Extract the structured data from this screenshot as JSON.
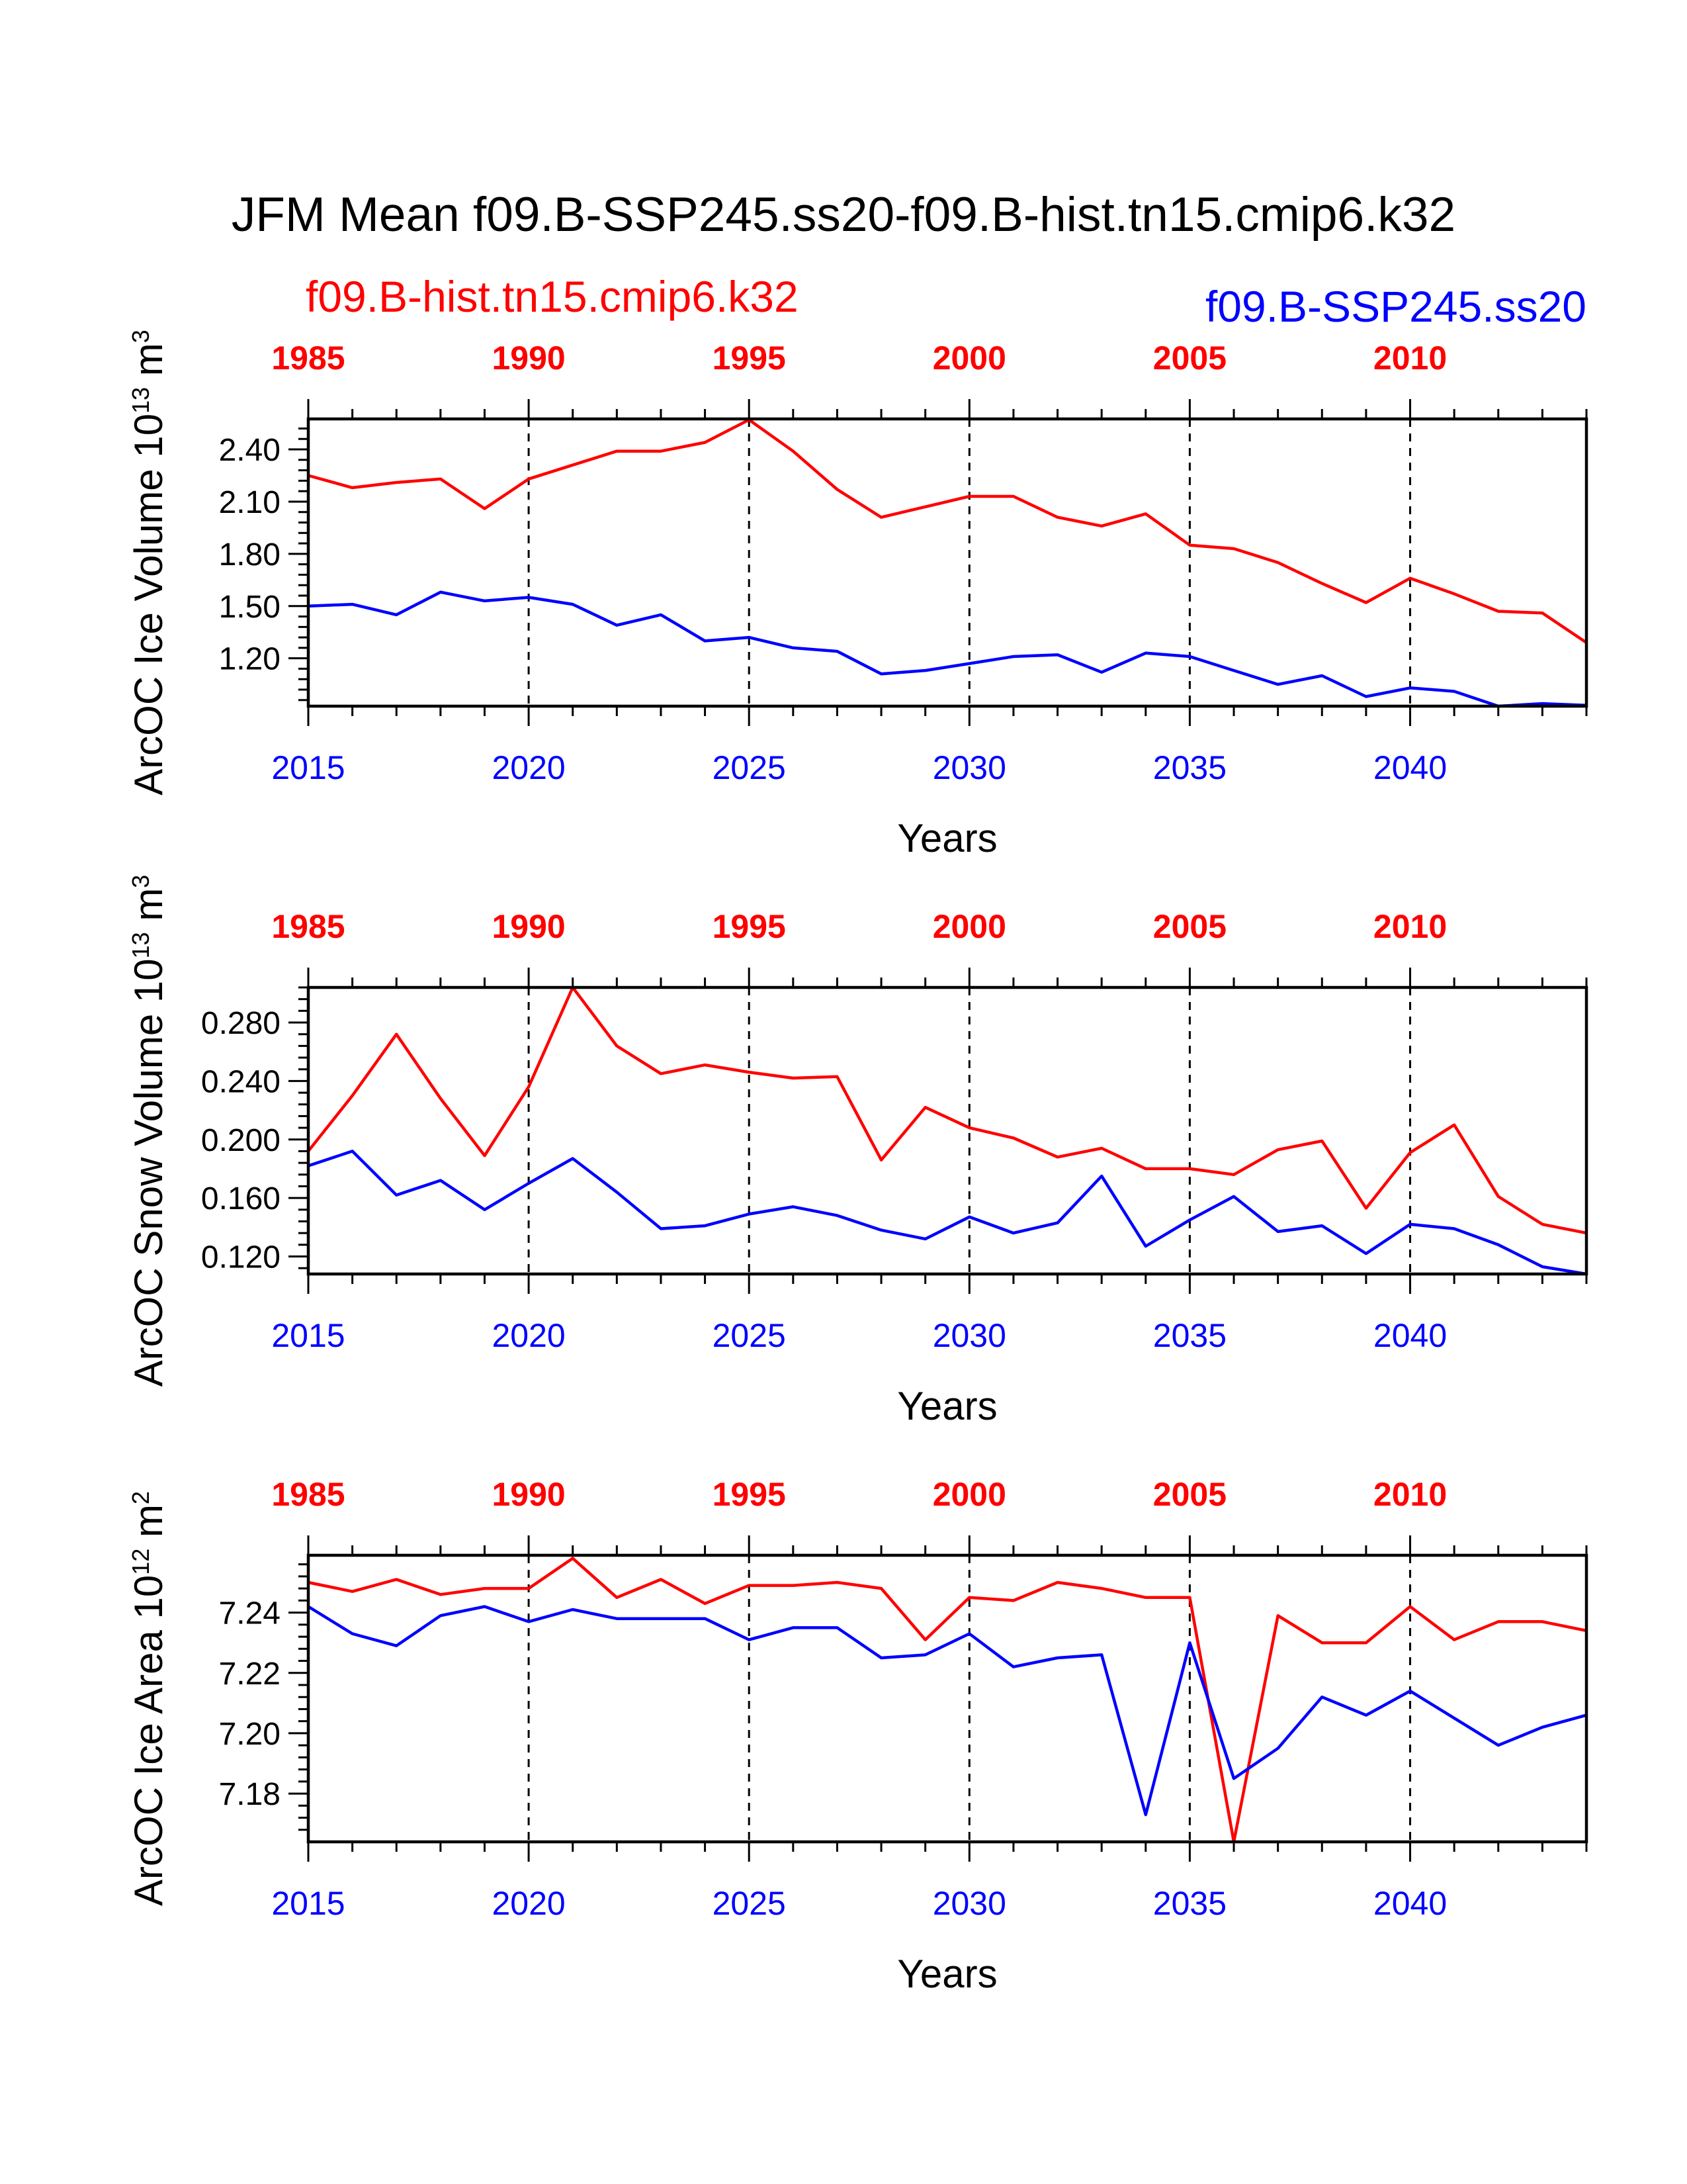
{
  "title": "JFM Mean f09.B-SSP245.ss20-f09.B-hist.tn15.cmip6.k32",
  "legend": {
    "hist_label": "f09.B-hist.tn15.cmip6.k32",
    "ssp_label": "f09.B-SSP245.ss20"
  },
  "colors": {
    "hist": "#ff0000",
    "ssp": "#0000ff",
    "axis": "#000000"
  },
  "chart_data": [
    {
      "type": "line",
      "ylabel": "ArcOC Ice Volume",
      "yunit_base": "10",
      "yunit_exp": "13",
      "yunit_tail": "m",
      "yunit_tail_exp": "3",
      "xlabel": "Years",
      "xlim": [
        2015,
        2044
      ],
      "ylim": [
        0.925,
        2.575
      ],
      "yticks": [
        "1.20",
        "1.50",
        "1.80",
        "2.10",
        "2.40"
      ],
      "x_bottom_ticks": [
        "2015",
        "2020",
        "2025",
        "2030",
        "2035",
        "2040"
      ],
      "x_top_ticks": [
        "1985",
        "1990",
        "1995",
        "2000",
        "2005",
        "2010"
      ],
      "x": [
        2015,
        2016,
        2017,
        2018,
        2019,
        2020,
        2021,
        2022,
        2023,
        2024,
        2025,
        2026,
        2027,
        2028,
        2029,
        2030,
        2031,
        2032,
        2033,
        2034,
        2035,
        2036,
        2037,
        2038,
        2039,
        2040,
        2041,
        2042,
        2043,
        2044
      ],
      "series": [
        {
          "key": "hist",
          "values": [
            2.25,
            2.18,
            2.21,
            2.23,
            2.06,
            2.23,
            2.31,
            2.39,
            2.39,
            2.44,
            2.57,
            2.39,
            2.17,
            2.01,
            2.07,
            2.13,
            2.13,
            2.01,
            1.96,
            2.03,
            1.85,
            1.83,
            1.75,
            1.63,
            1.52,
            1.66,
            1.57,
            1.47,
            1.46,
            1.29
          ]
        },
        {
          "key": "ssp",
          "values": [
            1.5,
            1.51,
            1.45,
            1.58,
            1.53,
            1.55,
            1.51,
            1.39,
            1.45,
            1.3,
            1.32,
            1.26,
            1.24,
            1.11,
            1.13,
            1.17,
            1.21,
            1.22,
            1.12,
            1.23,
            1.21,
            1.13,
            1.05,
            1.1,
            0.98,
            1.03,
            1.01,
            0.92,
            0.94,
            0.93
          ]
        }
      ]
    },
    {
      "type": "line",
      "ylabel": "ArcOC Snow Volume",
      "yunit_base": "10",
      "yunit_exp": "13",
      "yunit_tail": "m",
      "yunit_tail_exp": "3",
      "xlabel": "Years",
      "xlim": [
        2015,
        2044
      ],
      "ylim": [
        0.108,
        0.304
      ],
      "yticks": [
        "0.120",
        "0.160",
        "0.200",
        "0.240",
        "0.280"
      ],
      "x_bottom_ticks": [
        "2015",
        "2020",
        "2025",
        "2030",
        "2035",
        "2040"
      ],
      "x_top_ticks": [
        "1985",
        "1990",
        "1995",
        "2000",
        "2005",
        "2010"
      ],
      "x": [
        2015,
        2016,
        2017,
        2018,
        2019,
        2020,
        2021,
        2022,
        2023,
        2024,
        2025,
        2026,
        2027,
        2028,
        2029,
        2030,
        2031,
        2032,
        2033,
        2034,
        2035,
        2036,
        2037,
        2038,
        2039,
        2040,
        2041,
        2042,
        2043,
        2044
      ],
      "series": [
        {
          "key": "hist",
          "values": [
            0.192,
            0.23,
            0.272,
            0.228,
            0.189,
            0.236,
            0.304,
            0.264,
            0.245,
            0.251,
            0.246,
            0.242,
            0.243,
            0.186,
            0.222,
            0.208,
            0.201,
            0.188,
            0.194,
            0.18,
            0.18,
            0.176,
            0.193,
            0.199,
            0.153,
            0.191,
            0.21,
            0.161,
            0.142,
            0.136
          ]
        },
        {
          "key": "ssp",
          "values": [
            0.182,
            0.192,
            0.162,
            0.172,
            0.152,
            0.17,
            0.187,
            0.164,
            0.139,
            0.141,
            0.149,
            0.154,
            0.148,
            0.138,
            0.132,
            0.147,
            0.136,
            0.143,
            0.175,
            0.127,
            0.145,
            0.161,
            0.137,
            0.141,
            0.122,
            0.142,
            0.139,
            0.128,
            0.113,
            0.107
          ]
        }
      ]
    },
    {
      "type": "line",
      "ylabel": "ArcOC Ice Area",
      "yunit_base": "10",
      "yunit_exp": "12",
      "yunit_tail": "m",
      "yunit_tail_exp": "2",
      "xlabel": "Years",
      "xlim": [
        2015,
        2044
      ],
      "ylim": [
        7.164,
        7.259
      ],
      "yticks": [
        "7.18",
        "7.20",
        "7.22",
        "7.24"
      ],
      "x_bottom_ticks": [
        "2015",
        "2020",
        "2025",
        "2030",
        "2035",
        "2040"
      ],
      "x_top_ticks": [
        "1985",
        "1990",
        "1995",
        "2000",
        "2005",
        "2010"
      ],
      "x": [
        2015,
        2016,
        2017,
        2018,
        2019,
        2020,
        2021,
        2022,
        2023,
        2024,
        2025,
        2026,
        2027,
        2028,
        2029,
        2030,
        2031,
        2032,
        2033,
        2034,
        2035,
        2036,
        2037,
        2038,
        2039,
        2040,
        2041,
        2042,
        2043,
        2044
      ],
      "series": [
        {
          "key": "hist",
          "values": [
            7.25,
            7.247,
            7.251,
            7.246,
            7.248,
            7.248,
            7.258,
            7.245,
            7.251,
            7.243,
            7.249,
            7.249,
            7.25,
            7.248,
            7.231,
            7.245,
            7.244,
            7.25,
            7.248,
            7.245,
            7.245,
            7.164,
            7.239,
            7.23,
            7.23,
            7.242,
            7.231,
            7.237,
            7.237,
            7.234
          ]
        },
        {
          "key": "ssp",
          "values": [
            7.242,
            7.233,
            7.229,
            7.239,
            7.242,
            7.237,
            7.241,
            7.238,
            7.238,
            7.238,
            7.231,
            7.235,
            7.235,
            7.225,
            7.226,
            7.233,
            7.222,
            7.225,
            7.226,
            7.173,
            7.23,
            7.185,
            7.195,
            7.212,
            7.206,
            7.214,
            7.205,
            7.196,
            7.202,
            7.206
          ]
        }
      ]
    }
  ]
}
